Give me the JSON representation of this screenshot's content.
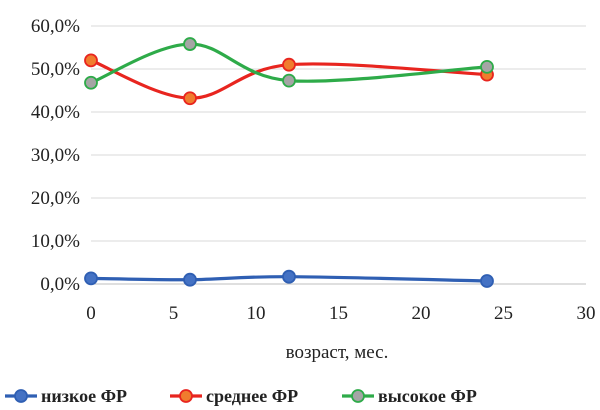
{
  "chart_data": {
    "type": "line",
    "title": "",
    "xlabel": "возраст, мес.",
    "ylabel": "",
    "xlim": [
      0,
      30
    ],
    "ylim": [
      0,
      60
    ],
    "x_ticks": [
      0,
      5,
      10,
      15,
      20,
      25,
      30
    ],
    "y_ticks": [
      0,
      10,
      20,
      30,
      40,
      50,
      60
    ],
    "x_tick_labels": [
      "0",
      "5",
      "10",
      "15",
      "20",
      "25",
      "30"
    ],
    "y_tick_labels": [
      "0,0%",
      "10,0%",
      "20,0%",
      "30,0%",
      "40,0%",
      "50,0%",
      "60,0%"
    ],
    "grid": "horizontal",
    "smooth": true,
    "legend_position": "bottom",
    "series": [
      {
        "name": "низкое ФР",
        "color": "#2f5fb3",
        "marker_fill": "#4472c4",
        "points": [
          [
            0,
            1.3
          ],
          [
            6,
            1.0
          ],
          [
            12,
            1.7
          ],
          [
            24,
            0.7
          ]
        ]
      },
      {
        "name": "среднее ФР",
        "color": "#e8251f",
        "marker_fill": "#f07c2e",
        "points": [
          [
            0,
            52.0
          ],
          [
            6,
            43.2
          ],
          [
            12,
            51.0
          ],
          [
            24,
            48.7
          ]
        ]
      },
      {
        "name": "высокое ФР",
        "color": "#2eab49",
        "marker_fill": "#a5a5a5",
        "points": [
          [
            0,
            46.8
          ],
          [
            6,
            55.8
          ],
          [
            12,
            47.3
          ],
          [
            24,
            50.5
          ]
        ]
      }
    ]
  }
}
